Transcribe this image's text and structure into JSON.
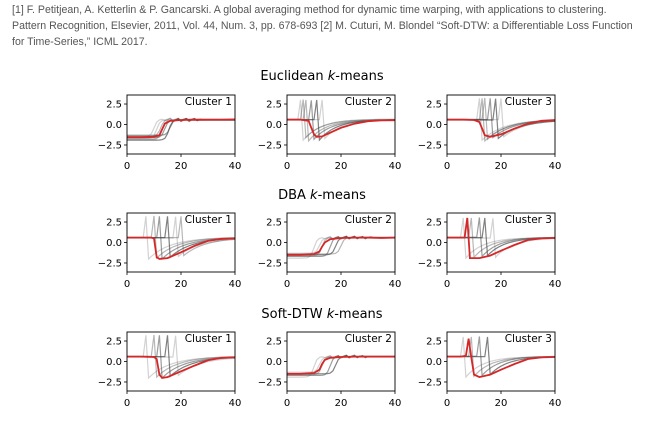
{
  "caption": {
    "ref1": "[1] F. Petitjean, A. Ketterlin & P. Gancarski. A global averaging method for dynamic time warping, with applications to clustering. Pattern Recognition, Elsevier, 2011, Vol. 44, Num. 3, pp. 678-693",
    "ref2": "[2] M. Cuturi, M. Blondel “Soft-DTW: a Differentiable Loss Function for Time-Series,” ICML 2017."
  },
  "colors": {
    "series_gray": "#4a4a4a",
    "barycenter": "#d62728"
  },
  "chart_data": [
    {
      "type": "line",
      "title_prefix": "Euclidean ",
      "title_italic": "k",
      "title_suffix": "-means",
      "xlim": [
        0,
        40
      ],
      "ylim": [
        -3.6,
        3.6
      ],
      "xticks": [
        0,
        20,
        40
      ],
      "xticklabels": [
        "0",
        "20",
        "40"
      ],
      "yticks": [
        2.5,
        0.0,
        -2.5
      ],
      "yticklabels": [
        "2.5",
        "0.0",
        "−2.5"
      ],
      "panels": [
        {
          "label": "Cluster 1",
          "series_params": [
            {
              "shape": "up",
              "t": 11,
              "lo": -1.7,
              "hi": 0.55
            },
            {
              "shape": "up",
              "t": 12.5,
              "lo": -1.4,
              "hi": 0.6
            },
            {
              "shape": "up",
              "t": 14,
              "lo": -1.6,
              "hi": 0.55
            },
            {
              "shape": "up",
              "t": 15.5,
              "lo": -1.9,
              "hi": 0.6
            },
            {
              "shape": "up",
              "t": 10,
              "lo": -1.5,
              "hi": 0.65
            },
            {
              "shape": "up",
              "t": 13,
              "lo": -1.8,
              "hi": 0.5
            },
            {
              "shape": "up",
              "t": 16,
              "lo": -1.3,
              "hi": 0.6
            }
          ],
          "barycenter": [
            [
              0,
              -1.55
            ],
            [
              5,
              -1.55
            ],
            [
              10,
              -1.5
            ],
            [
              12,
              -1.3
            ],
            [
              13,
              -0.6
            ],
            [
              14,
              0.1
            ],
            [
              16,
              0.45
            ],
            [
              20,
              0.55
            ],
            [
              25,
              0.58
            ],
            [
              30,
              0.6
            ],
            [
              35,
              0.6
            ],
            [
              40,
              0.62
            ]
          ]
        },
        {
          "label": "Cluster 2",
          "series_params": [
            {
              "shape": "spike_down",
              "t": 6,
              "lo": -1.9,
              "hi": 0.6
            },
            {
              "shape": "spike_down",
              "t": 8,
              "lo": -2.0,
              "hi": 0.6
            },
            {
              "shape": "spike_down",
              "t": 10,
              "lo": -1.8,
              "hi": 0.55
            },
            {
              "shape": "spike_down",
              "t": 12,
              "lo": -1.9,
              "hi": 0.6
            },
            {
              "shape": "spike_down",
              "t": 14,
              "lo": -1.7,
              "hi": 0.6
            },
            {
              "shape": "spike_down",
              "t": 7,
              "lo": -1.6,
              "hi": 0.65
            }
          ],
          "barycenter": [
            [
              0,
              0.6
            ],
            [
              5,
              0.6
            ],
            [
              8,
              0.45
            ],
            [
              9,
              -0.4
            ],
            [
              10,
              -1.2
            ],
            [
              11,
              -1.5
            ],
            [
              13,
              -1.45
            ],
            [
              16,
              -1.0
            ],
            [
              20,
              -0.4
            ],
            [
              25,
              0.1
            ],
            [
              30,
              0.4
            ],
            [
              35,
              0.5
            ],
            [
              40,
              0.52
            ]
          ]
        },
        {
          "label": "Cluster 3",
          "series_params": [
            {
              "shape": "drop_slow",
              "t": 12,
              "lo": -1.9,
              "hi": 0.6
            },
            {
              "shape": "drop_slow",
              "t": 14,
              "lo": -1.8,
              "hi": 0.65
            },
            {
              "shape": "drop_slow",
              "t": 16,
              "lo": -1.6,
              "hi": 0.6
            },
            {
              "shape": "drop_slow",
              "t": 18,
              "lo": -1.7,
              "hi": 0.55
            },
            {
              "shape": "drop_slow",
              "t": 20,
              "lo": -1.5,
              "hi": 0.6
            },
            {
              "shape": "drop_slow",
              "t": 13,
              "lo": -2.0,
              "hi": 0.6
            }
          ],
          "barycenter": [
            [
              0,
              0.6
            ],
            [
              6,
              0.6
            ],
            [
              10,
              0.55
            ],
            [
              12,
              0.3
            ],
            [
              13,
              -0.5
            ],
            [
              14,
              -1.3
            ],
            [
              16,
              -1.5
            ],
            [
              20,
              -1.2
            ],
            [
              25,
              -0.5
            ],
            [
              30,
              0.1
            ],
            [
              35,
              0.45
            ],
            [
              40,
              0.55
            ]
          ]
        }
      ]
    },
    {
      "type": "line",
      "title_prefix": "DBA ",
      "title_italic": "k",
      "title_suffix": "-means",
      "xlim": [
        0,
        40
      ],
      "ylim": [
        -3.6,
        3.6
      ],
      "xticks": [
        0,
        20,
        40
      ],
      "xticklabels": [
        "0",
        "20",
        "40"
      ],
      "yticks": [
        2.5,
        0.0,
        -2.5
      ],
      "yticklabels": [
        "2.5",
        "0.0",
        "−2.5"
      ],
      "panels": [
        {
          "label": "Cluster 1",
          "series_params": [
            {
              "shape": "drop_slow",
              "t": 7,
              "lo": -2.0,
              "hi": 0.6
            },
            {
              "shape": "drop_slow",
              "t": 10,
              "lo": -1.9,
              "hi": 0.65
            },
            {
              "shape": "drop_slow",
              "t": 12,
              "lo": -2.0,
              "hi": 0.6
            },
            {
              "shape": "drop_slow",
              "t": 15,
              "lo": -1.8,
              "hi": 0.6
            },
            {
              "shape": "drop_slow",
              "t": 18,
              "lo": -1.7,
              "hi": 0.55
            },
            {
              "shape": "drop_slow",
              "t": 20,
              "lo": -1.6,
              "hi": 0.6
            }
          ],
          "barycenter": [
            [
              0,
              0.6
            ],
            [
              5,
              0.6
            ],
            [
              9,
              0.6
            ],
            [
              10,
              0.5
            ],
            [
              11,
              -1.8
            ],
            [
              12,
              -2.0
            ],
            [
              15,
              -1.9
            ],
            [
              20,
              -1.2
            ],
            [
              25,
              -0.4
            ],
            [
              30,
              0.2
            ],
            [
              35,
              0.45
            ],
            [
              40,
              0.5
            ]
          ]
        },
        {
          "label": "Cluster 2",
          "series_params": [
            {
              "shape": "up",
              "t": 10,
              "lo": -1.9,
              "hi": 0.6
            },
            {
              "shape": "up",
              "t": 13,
              "lo": -1.6,
              "hi": 0.6
            },
            {
              "shape": "up",
              "t": 16,
              "lo": -1.7,
              "hi": 0.65
            },
            {
              "shape": "up",
              "t": 18,
              "lo": -1.5,
              "hi": 0.6
            },
            {
              "shape": "up",
              "t": 12,
              "lo": -1.3,
              "hi": 0.55
            },
            {
              "shape": "up",
              "t": 20,
              "lo": -1.4,
              "hi": 0.6
            }
          ],
          "barycenter": [
            [
              0,
              -1.5
            ],
            [
              5,
              -1.5
            ],
            [
              10,
              -1.4
            ],
            [
              12,
              -1.1
            ],
            [
              13,
              -0.5
            ],
            [
              14,
              0.0
            ],
            [
              16,
              0.4
            ],
            [
              20,
              0.55
            ],
            [
              25,
              0.6
            ],
            [
              30,
              0.6
            ],
            [
              35,
              0.55
            ],
            [
              40,
              0.6
            ]
          ]
        },
        {
          "label": "Cluster 3",
          "series_params": [
            {
              "shape": "spike_down",
              "t": 7,
              "lo": -1.9,
              "hi": 0.6
            },
            {
              "shape": "spike_down",
              "t": 10,
              "lo": -1.8,
              "hi": 0.6
            },
            {
              "shape": "spike_down",
              "t": 13,
              "lo": -1.7,
              "hi": 0.65
            },
            {
              "shape": "spike_down",
              "t": 15,
              "lo": -1.6,
              "hi": 0.6
            },
            {
              "shape": "spike_down",
              "t": 18,
              "lo": -1.8,
              "hi": 0.55
            }
          ],
          "barycenter": [
            [
              0,
              0.6
            ],
            [
              5,
              0.6
            ],
            [
              6.5,
              0.6
            ],
            [
              7.5,
              3.0
            ],
            [
              8.5,
              -1.9
            ],
            [
              12,
              -1.9
            ],
            [
              16,
              -1.6
            ],
            [
              20,
              -1.0
            ],
            [
              25,
              -0.3
            ],
            [
              30,
              0.3
            ],
            [
              35,
              0.5
            ],
            [
              40,
              0.55
            ]
          ]
        }
      ]
    },
    {
      "type": "line",
      "title_prefix": "Soft-DTW ",
      "title_italic": "k",
      "title_suffix": "-means",
      "xlim": [
        0,
        40
      ],
      "ylim": [
        -3.6,
        3.6
      ],
      "xticks": [
        0,
        20,
        40
      ],
      "xticklabels": [
        "0",
        "20",
        "40"
      ],
      "yticks": [
        2.5,
        0.0,
        -2.5
      ],
      "yticklabels": [
        "2.5",
        "0.0",
        "−2.5"
      ],
      "panels": [
        {
          "label": "Cluster 1",
          "series_params": [
            {
              "shape": "drop_slow",
              "t": 7,
              "lo": -2.0,
              "hi": 0.6
            },
            {
              "shape": "drop_slow",
              "t": 10,
              "lo": -1.9,
              "hi": 0.65
            },
            {
              "shape": "drop_slow",
              "t": 12,
              "lo": -2.0,
              "hi": 0.6
            },
            {
              "shape": "drop_slow",
              "t": 15,
              "lo": -1.8,
              "hi": 0.6
            },
            {
              "shape": "drop_slow",
              "t": 18,
              "lo": -1.7,
              "hi": 0.55
            }
          ],
          "barycenter": [
            [
              0,
              0.6
            ],
            [
              5,
              0.6
            ],
            [
              10,
              0.55
            ],
            [
              11,
              0.3
            ],
            [
              12,
              -1.6
            ],
            [
              13,
              -2.0
            ],
            [
              15,
              -1.9
            ],
            [
              20,
              -1.2
            ],
            [
              25,
              -0.5
            ],
            [
              30,
              0.15
            ],
            [
              35,
              0.45
            ],
            [
              40,
              0.5
            ]
          ]
        },
        {
          "label": "Cluster 2",
          "series_params": [
            {
              "shape": "up",
              "t": 10,
              "lo": -1.9,
              "hi": 0.6
            },
            {
              "shape": "up",
              "t": 13,
              "lo": -1.6,
              "hi": 0.6
            },
            {
              "shape": "up",
              "t": 16,
              "lo": -1.7,
              "hi": 0.65
            },
            {
              "shape": "up",
              "t": 18,
              "lo": -1.5,
              "hi": 0.6
            },
            {
              "shape": "up",
              "t": 12,
              "lo": -1.3,
              "hi": 0.55
            }
          ],
          "barycenter": [
            [
              0,
              -1.5
            ],
            [
              5,
              -1.5
            ],
            [
              10,
              -1.4
            ],
            [
              12,
              -1.0
            ],
            [
              13,
              -0.3
            ],
            [
              14,
              0.2
            ],
            [
              16,
              0.45
            ],
            [
              20,
              0.55
            ],
            [
              25,
              0.6
            ],
            [
              30,
              0.6
            ],
            [
              35,
              0.6
            ],
            [
              40,
              0.6
            ]
          ]
        },
        {
          "label": "Cluster 3",
          "series_params": [
            {
              "shape": "spike_down",
              "t": 7,
              "lo": -1.9,
              "hi": 0.6
            },
            {
              "shape": "spike_down",
              "t": 10,
              "lo": -1.8,
              "hi": 0.6
            },
            {
              "shape": "spike_down",
              "t": 13,
              "lo": -1.7,
              "hi": 0.65
            },
            {
              "shape": "spike_down",
              "t": 16,
              "lo": -1.6,
              "hi": 0.6
            }
          ],
          "barycenter": [
            [
              0,
              0.6
            ],
            [
              5,
              0.6
            ],
            [
              7,
              0.7
            ],
            [
              8,
              2.8
            ],
            [
              9,
              0.5
            ],
            [
              10,
              -1.6
            ],
            [
              12,
              -1.9
            ],
            [
              16,
              -1.6
            ],
            [
              20,
              -1.0
            ],
            [
              25,
              -0.3
            ],
            [
              30,
              0.3
            ],
            [
              35,
              0.5
            ],
            [
              40,
              0.55
            ]
          ]
        }
      ]
    }
  ]
}
